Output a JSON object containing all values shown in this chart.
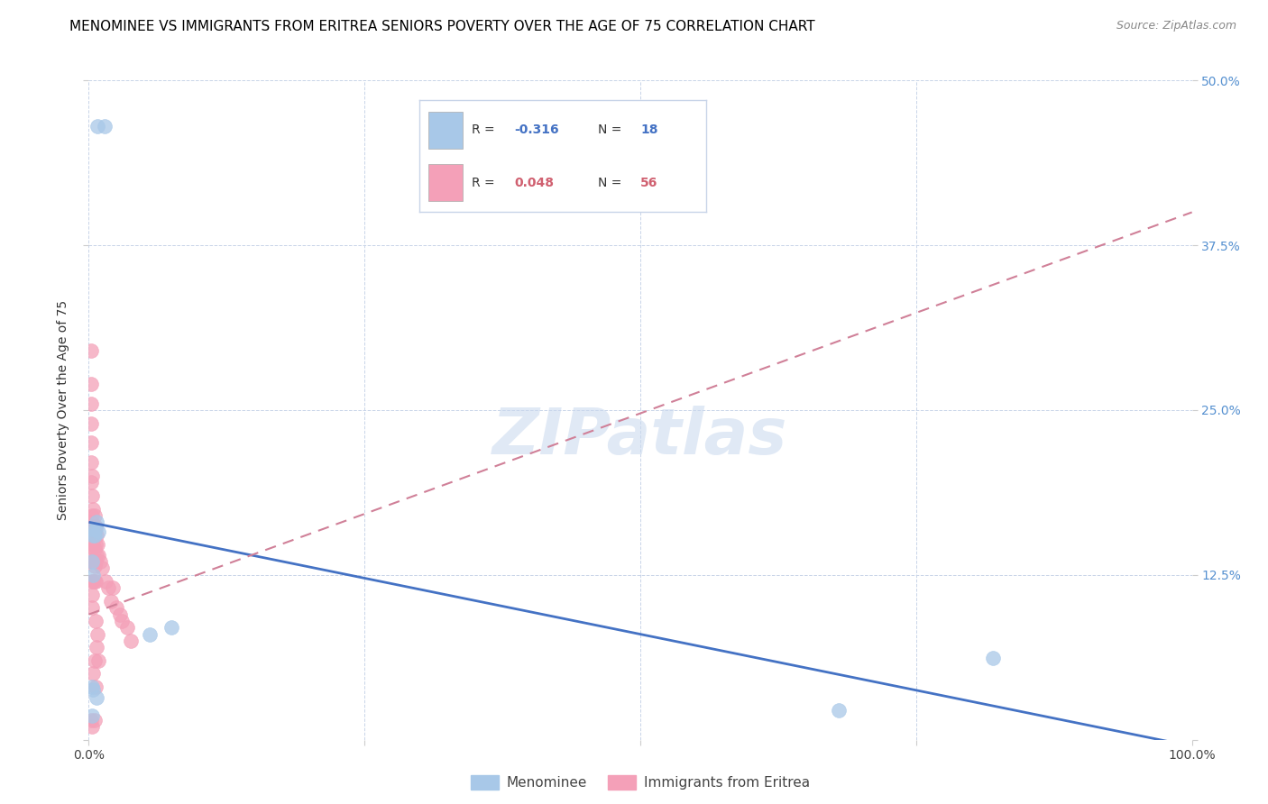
{
  "title": "MENOMINEE VS IMMIGRANTS FROM ERITREA SENIORS POVERTY OVER THE AGE OF 75 CORRELATION CHART",
  "source": "Source: ZipAtlas.com",
  "ylabel": "Seniors Poverty Over the Age of 75",
  "xlim": [
    0,
    1.0
  ],
  "ylim": [
    0,
    0.5
  ],
  "xticks": [
    0.0,
    0.25,
    0.5,
    0.75,
    1.0
  ],
  "xticklabels": [
    "0.0%",
    "",
    "",
    "",
    "100.0%"
  ],
  "yticks": [
    0.0,
    0.125,
    0.25,
    0.375,
    0.5
  ],
  "yticklabels_right": [
    "",
    "12.5%",
    "25.0%",
    "37.5%",
    "50.0%"
  ],
  "legend1_label": "Menominee",
  "legend2_label": "Immigrants from Eritrea",
  "R1": -0.316,
  "N1": 18,
  "R2": 0.048,
  "N2": 56,
  "color1": "#a8c8e8",
  "color2": "#f4a0b8",
  "trendline1_color": "#4472c4",
  "trendline2_color": "#d08098",
  "menominee_x": [
    0.008,
    0.014,
    0.003,
    0.004,
    0.006,
    0.007,
    0.009,
    0.005,
    0.003,
    0.004,
    0.055,
    0.075,
    0.003,
    0.004,
    0.007,
    0.82,
    0.68,
    0.003
  ],
  "menominee_y": [
    0.465,
    0.465,
    0.16,
    0.155,
    0.16,
    0.165,
    0.158,
    0.155,
    0.135,
    0.125,
    0.08,
    0.085,
    0.04,
    0.038,
    0.032,
    0.062,
    0.022,
    0.018
  ],
  "eritrea_x": [
    0.002,
    0.002,
    0.002,
    0.002,
    0.002,
    0.002,
    0.002,
    0.002,
    0.003,
    0.003,
    0.003,
    0.003,
    0.003,
    0.003,
    0.003,
    0.003,
    0.003,
    0.003,
    0.003,
    0.004,
    0.004,
    0.004,
    0.004,
    0.004,
    0.004,
    0.005,
    0.005,
    0.005,
    0.005,
    0.005,
    0.005,
    0.005,
    0.006,
    0.006,
    0.006,
    0.006,
    0.006,
    0.006,
    0.007,
    0.007,
    0.007,
    0.008,
    0.008,
    0.009,
    0.009,
    0.01,
    0.012,
    0.015,
    0.018,
    0.02,
    0.022,
    0.025,
    0.028,
    0.03,
    0.035,
    0.038
  ],
  "eritrea_y": [
    0.295,
    0.27,
    0.255,
    0.24,
    0.225,
    0.21,
    0.195,
    0.015,
    0.2,
    0.185,
    0.17,
    0.165,
    0.155,
    0.145,
    0.135,
    0.12,
    0.11,
    0.1,
    0.01,
    0.175,
    0.162,
    0.148,
    0.135,
    0.12,
    0.05,
    0.17,
    0.158,
    0.145,
    0.132,
    0.12,
    0.06,
    0.015,
    0.162,
    0.148,
    0.135,
    0.12,
    0.09,
    0.04,
    0.155,
    0.14,
    0.07,
    0.148,
    0.08,
    0.14,
    0.06,
    0.135,
    0.13,
    0.12,
    0.115,
    0.105,
    0.115,
    0.1,
    0.095,
    0.09,
    0.085,
    0.075
  ],
  "trendline1_x": [
    0.0,
    1.0
  ],
  "trendline1_y": [
    0.165,
    -0.005
  ],
  "trendline2_x": [
    0.0,
    1.0
  ],
  "trendline2_y": [
    0.095,
    0.4
  ],
  "watermark": "ZIPatlas",
  "background_color": "#ffffff",
  "grid_color": "#c8d4e8",
  "title_fontsize": 11,
  "axis_label_fontsize": 10,
  "tick_fontsize": 10,
  "right_tick_color": "#5590d0"
}
